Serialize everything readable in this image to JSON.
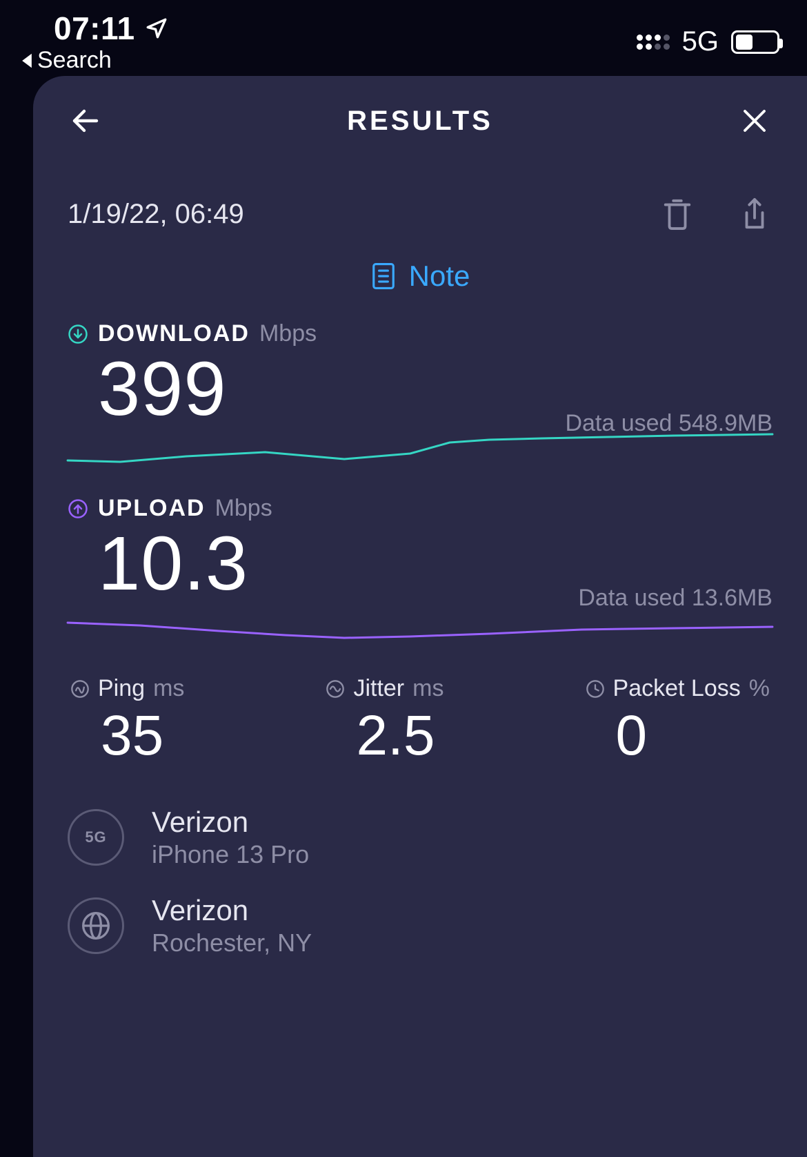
{
  "status": {
    "time": "07:11",
    "back_breadcrumb": "Search",
    "network_label": "5G",
    "battery_pct": 42
  },
  "header": {
    "title": "RESULTS"
  },
  "result": {
    "timestamp": "1/19/22, 06:49",
    "note_label": "Note"
  },
  "download": {
    "label": "DOWNLOAD",
    "unit": "Mbps",
    "value": "399",
    "data_used": "Data used 548.9MB",
    "color": "#35d6c4",
    "sparkline": {
      "points": [
        [
          0,
          48
        ],
        [
          80,
          50
        ],
        [
          180,
          42
        ],
        [
          300,
          36
        ],
        [
          420,
          46
        ],
        [
          520,
          38
        ],
        [
          580,
          22
        ],
        [
          640,
          18
        ],
        [
          720,
          16
        ],
        [
          820,
          14
        ],
        [
          920,
          12
        ],
        [
          1070,
          10
        ]
      ],
      "stroke_width": 3
    }
  },
  "upload": {
    "label": "UPLOAD",
    "unit": "Mbps",
    "value": "10.3",
    "data_used": "Data used 13.6MB",
    "color": "#9a62ff",
    "sparkline": {
      "points": [
        [
          0,
          30
        ],
        [
          110,
          34
        ],
        [
          230,
          42
        ],
        [
          330,
          48
        ],
        [
          420,
          52
        ],
        [
          520,
          50
        ],
        [
          640,
          46
        ],
        [
          780,
          40
        ],
        [
          920,
          38
        ],
        [
          1070,
          36
        ]
      ],
      "stroke_width": 3
    }
  },
  "metrics": {
    "ping": {
      "label": "Ping",
      "unit": "ms",
      "value": "35"
    },
    "jitter": {
      "label": "Jitter",
      "unit": "ms",
      "value": "2.5"
    },
    "loss": {
      "label": "Packet Loss",
      "unit": "%",
      "value": "0"
    }
  },
  "carrier": {
    "badge": "5G",
    "name": "Verizon",
    "device": "iPhone 13 Pro",
    "server_name": "Verizon",
    "server_location": "Rochester, NY"
  },
  "colors": {
    "bg": "#060614",
    "card": "#2a2a47",
    "text": "#ffffff",
    "muted": "#8e8ea6",
    "accent_link": "#3aa9ff"
  }
}
